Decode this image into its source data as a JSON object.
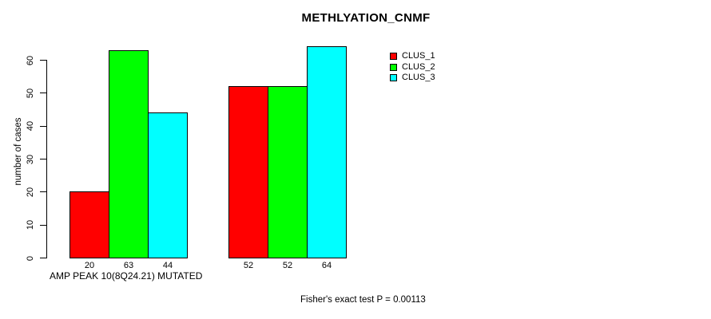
{
  "background_color": "#FFFFFF",
  "chart_data": {
    "type": "bar",
    "title": "METHLYATION_CNMF",
    "ylabel": "number of cases",
    "xlabel": "AMP PEAK 10(8Q24.21) MUTATED",
    "yticks": [
      0,
      10,
      20,
      30,
      40,
      50,
      60
    ],
    "ylim": [
      0,
      65
    ],
    "grid": false,
    "legend_position": "top-right",
    "series": [
      {
        "name": "CLUS_1",
        "color": "#FF0000",
        "values": [
          20,
          52
        ]
      },
      {
        "name": "CLUS_2",
        "color": "#00FF00",
        "values": [
          63,
          52
        ]
      },
      {
        "name": "CLUS_3",
        "color": "#00FFFF",
        "values": [
          44,
          64
        ]
      }
    ],
    "bar_value_labels": [
      [
        20,
        63,
        44
      ],
      [
        52,
        52,
        64
      ]
    ],
    "annotation": "Fisher's exact test P = 0.00113"
  }
}
